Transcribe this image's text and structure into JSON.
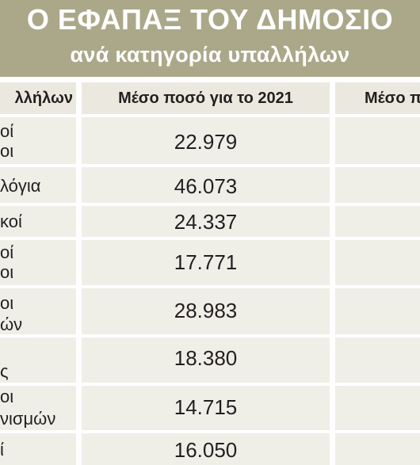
{
  "header": {
    "title": "Ο ΕΦΑΠΑΞ ΤΟΥ ΔΗΜΟΣΙΟ",
    "subtitle": "ανά κατηγορία υπαλλήλων"
  },
  "table": {
    "columns": [
      "λλήλων",
      "Μέσο ποσό για το 2021",
      "Μέσο π"
    ],
    "rows": [
      {
        "label_lines": [
          "οί",
          "οι"
        ],
        "value": "22.979",
        "value2": ""
      },
      {
        "label_lines": [
          "λόγια"
        ],
        "value": "46.073",
        "value2": ""
      },
      {
        "label_lines": [
          "κοί"
        ],
        "value": "24.337",
        "value2": ""
      },
      {
        "label_lines": [
          "οί",
          "οι"
        ],
        "value": "17.771",
        "value2": ""
      },
      {
        "label_lines": [
          "οι",
          "ών"
        ],
        "value": "28.983",
        "value2": ""
      },
      {
        "label_lines": [
          "",
          "ς"
        ],
        "value": "18.380",
        "value2": ""
      },
      {
        "label_lines": [
          "οι",
          "νισμών"
        ],
        "value": "14.715",
        "value2": ""
      },
      {
        "label_lines": [
          "ί"
        ],
        "value": "16.050",
        "value2": ""
      }
    ]
  },
  "colors": {
    "header_bg": "#aba88a",
    "cell_bg": "#efeee7",
    "header_cell_bg": "#ebe9df",
    "text": "#231f20"
  }
}
